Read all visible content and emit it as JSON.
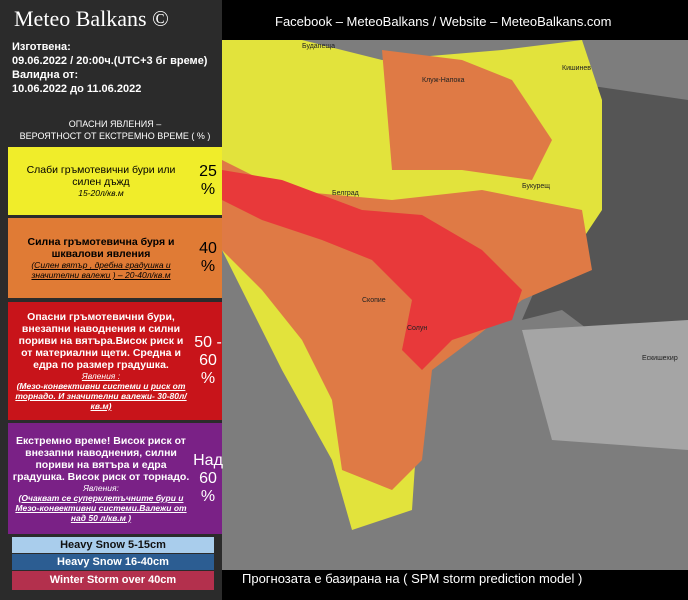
{
  "header": {
    "title": "Meteo Balkans ©",
    "issued_label": "Изготвена:",
    "issued": "09.06.2022 / 20:00ч.(UTC+3 бг време)",
    "valid_label": "Валидна от:",
    "valid": "10.06.2022  до 11.06.2022",
    "section_line1": "ОПАСНИ ЯВЛЕНИЯ –",
    "section_line2": "ВЕРОЯТНОСТ ОТ ЕКСТРЕМНО ВРЕМЕ ( % )",
    "links": "Facebook – MeteoBalkans / Website – MeteoBalkans.com"
  },
  "legend": [
    {
      "text": "Слаби гръмотевични бури или силен дъжд",
      "note": "15-20л/кв.м",
      "percent": "25 %"
    },
    {
      "text": "Силна гръмотевична буря и шквалови явления",
      "note": "(Силен вятър , дребна градушка и значителни валежи ) – 20-40л/кв.м",
      "percent": "40 %"
    },
    {
      "text": "Опасни гръмотевични бури, внезапни наводнения и силни пориви на вятъра.Висок риск и от материални щети. Средна и едра по размер градушка.",
      "sub": "Явления :",
      "note": "(Мезо-конвективни системи и риск от торнадо. И значителни валежи- 30-80л/кв.м)",
      "percent": "50 - 60 %"
    },
    {
      "text": "Екстремно време! Висок риск от внезапни наводнения, силни пориви на вятъра и едра градушка. Висок риск от торнадо.",
      "sub": "Явления:",
      "note": "(Очакват се суперклетъчните бури и Мезо-конвективни системи.Валежи от над 50 л/кв.м )",
      "percent": "Над 60 %"
    }
  ],
  "snow": [
    "Heavy Snow 5-15cm",
    "Heavy Snow 16-40cm",
    "Winter Storm over 40cm"
  ],
  "map_labels": [
    "Будапеща",
    "Клуж-Напока",
    "Кишинев",
    "Букурещ",
    "Белград",
    "Скопие",
    "Солун",
    "Ескишехир"
  ],
  "footer": "Прогнозата е базирана на ( SPM storm prediction model )"
}
